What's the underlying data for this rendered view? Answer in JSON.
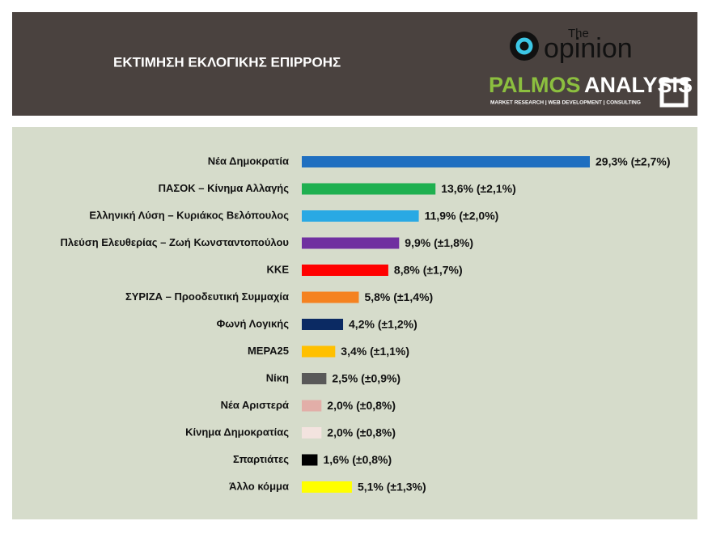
{
  "chart_data": {
    "type": "bar",
    "orientation": "horizontal",
    "title": "ΕΚΤΙΜΗΣΗ ΕΚΛΟΓΙΚΗΣ ΕΠΙΡΡΟΗΣ",
    "categories": [
      "Νέα Δημοκρατία",
      "ΠΑΣΟΚ – Κίνημα Αλλαγής",
      "Ελληνική Λύση – Κυριάκος Βελόπουλος",
      "Πλεύση Ελευθερίας – Ζωή Κωνσταντοπούλου",
      "ΚΚΕ",
      "ΣΥΡΙΖΑ – Προοδευτική Συμμαχία",
      "Φωνή Λογικής",
      "ΜΕΡΑ25",
      "Νίκη",
      "Νέα Αριστερά",
      "Κίνημα Δημοκρατίας",
      "Σπαρτιάτες",
      "Άλλο κόμμα"
    ],
    "values": [
      29.3,
      13.6,
      11.9,
      9.9,
      8.8,
      5.8,
      4.2,
      3.4,
      2.5,
      2.0,
      2.0,
      1.6,
      5.1
    ],
    "value_labels": [
      "29,3% (±2,7%)",
      "13,6% (±2,1%)",
      "11,9% (±2,0%)",
      "9,9% (±1,8%)",
      "8,8% (±1,7%)",
      "5,8% (±1,4%)",
      "4,2% (±1,2%)",
      "3,4% (±1,1%)",
      "2,5% (±0,9%)",
      "2,0% (±0,8%)",
      "2,0% (±0,8%)",
      "1,6% (±0,8%)",
      "5,1% (±1,3%)"
    ],
    "colors": [
      "#1f6fc0",
      "#1fb050",
      "#29a9e4",
      "#7030a0",
      "#ff0000",
      "#f58220",
      "#0b2a63",
      "#ffc000",
      "#595959",
      "#e2aea8",
      "#f3e3df",
      "#000000",
      "#ffff00"
    ]
  },
  "logos": {
    "opinion_small": "The",
    "opinion": "opinion",
    "palmos": "PALMOS",
    "analysis": "ANALYSIS",
    "tagline": "MARKET RESEARCH | WEB DEVELOPMENT | CONSULTING"
  }
}
